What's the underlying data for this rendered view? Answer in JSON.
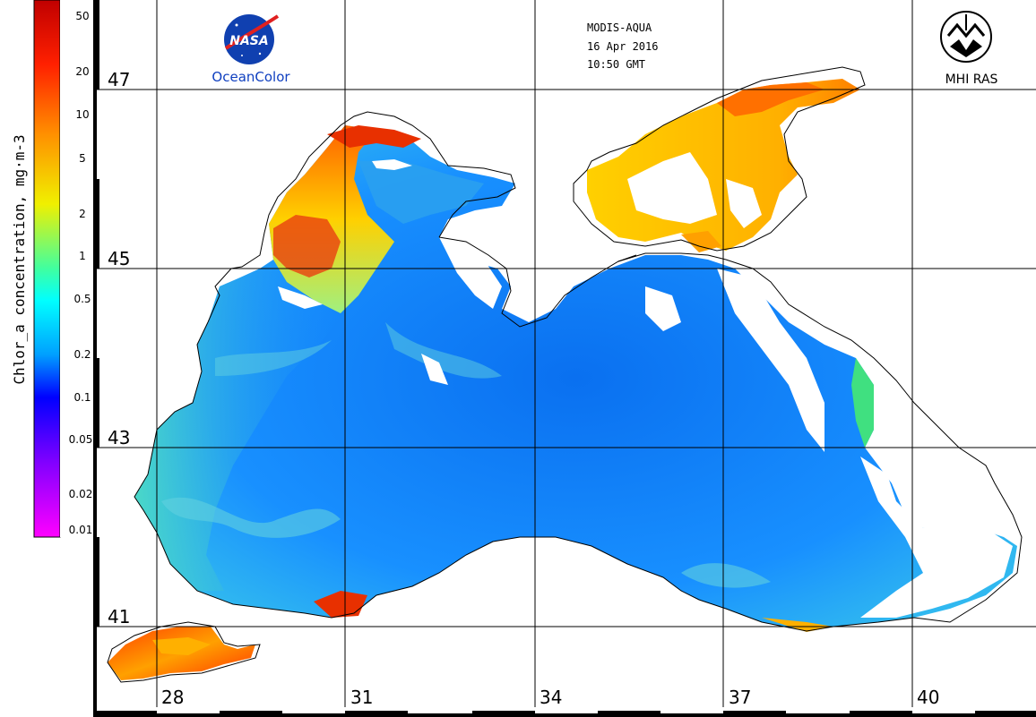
{
  "header": {
    "sensor": "MODIS-AQUA",
    "date": "16 Apr 2016",
    "time": "10:50 GMT"
  },
  "logos": {
    "nasa_text": "NASA",
    "nasa_caption": "OceanColor",
    "mhi_caption": "MHI RAS"
  },
  "colorbar": {
    "title": "Chlor_a concentration, mg·m-3",
    "ticks": [
      "50",
      "20",
      "10",
      "5",
      "2",
      "1",
      "0.5",
      "0.2",
      "0.1",
      "0.05",
      "0.02",
      "0.01"
    ],
    "colors": [
      "#ff0000",
      "#ff6000",
      "#ffc000",
      "#e0ff00",
      "#00ffff",
      "#0080ff",
      "#0000ff",
      "#8000ff",
      "#ff00ff"
    ]
  },
  "latitudes": [
    "47",
    "45",
    "43",
    "41"
  ],
  "longitudes": [
    "28",
    "31",
    "34",
    "37",
    "40"
  ],
  "colors": {
    "sea_blue": "#1a90ff",
    "coastal_green": "#40e0c0",
    "bloom_red": "#e83000",
    "bloom_orange": "#ff9a00",
    "azov_yellow": "#ffcc00",
    "cloud_white": "#ffffff",
    "coastline": "#000000"
  }
}
